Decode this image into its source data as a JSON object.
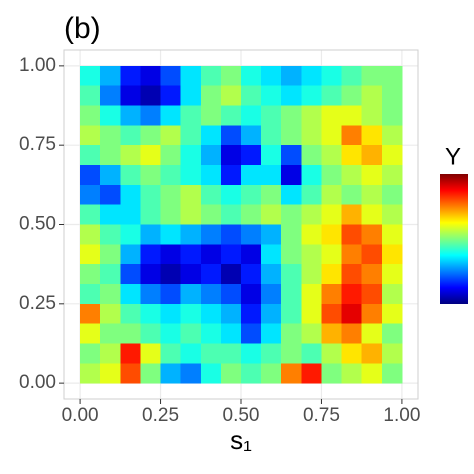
{
  "chart_data": {
    "type": "heatmap",
    "title": "(b)",
    "x_label": "s₁",
    "legend_title": "Y",
    "xlim": [
      -0.05,
      1.05
    ],
    "ylim": [
      -0.05,
      1.05
    ],
    "xticks": [
      {
        "value": 0,
        "label": "0.00"
      },
      {
        "value": 0.25,
        "label": "0.25"
      },
      {
        "value": 0.5,
        "label": "0.50"
      },
      {
        "value": 0.75,
        "label": "0.75"
      },
      {
        "value": 1,
        "label": "1.00"
      }
    ],
    "yticks": [
      {
        "value": 0,
        "label": "0.00"
      },
      {
        "value": 0.25,
        "label": "0.25"
      },
      {
        "value": 0.5,
        "label": "0.50"
      },
      {
        "value": 0.75,
        "label": "0.75"
      },
      {
        "value": 1,
        "label": "1.00"
      }
    ],
    "grid": true,
    "zlim": [
      0,
      1
    ],
    "colorscale": [
      "#00007F",
      "#0000FF",
      "#007FFF",
      "#00FFFF",
      "#7FFF7F",
      "#FFFF00",
      "#FF7F00",
      "#FF0000",
      "#7F0000"
    ],
    "x": [
      0.03125,
      0.09375,
      0.15625,
      0.21875,
      0.28125,
      0.34375,
      0.40625,
      0.46875,
      0.53125,
      0.59375,
      0.65625,
      0.71875,
      0.78125,
      0.84375,
      0.90625,
      0.96875
    ],
    "y": [
      0.96875,
      0.90625,
      0.84375,
      0.78125,
      0.71875,
      0.65625,
      0.59375,
      0.53125,
      0.46875,
      0.40625,
      0.34375,
      0.28125,
      0.21875,
      0.15625,
      0.09375,
      0.03125
    ],
    "z": [
      [
        0.4,
        0.3,
        0.15,
        0.1,
        0.2,
        0.35,
        0.45,
        0.5,
        0.4,
        0.35,
        0.3,
        0.35,
        0.4,
        0.45,
        0.5,
        0.5
      ],
      [
        0.45,
        0.25,
        0.1,
        0.05,
        0.15,
        0.35,
        0.5,
        0.55,
        0.45,
        0.4,
        0.35,
        0.4,
        0.45,
        0.5,
        0.55,
        0.5
      ],
      [
        0.5,
        0.4,
        0.3,
        0.25,
        0.35,
        0.45,
        0.5,
        0.45,
        0.4,
        0.45,
        0.5,
        0.55,
        0.6,
        0.6,
        0.55,
        0.5
      ],
      [
        0.55,
        0.5,
        0.45,
        0.5,
        0.55,
        0.45,
        0.35,
        0.2,
        0.3,
        0.45,
        0.5,
        0.55,
        0.6,
        0.75,
        0.65,
        0.55
      ],
      [
        0.45,
        0.5,
        0.55,
        0.6,
        0.5,
        0.4,
        0.3,
        0.1,
        0.15,
        0.4,
        0.2,
        0.5,
        0.55,
        0.65,
        0.7,
        0.6
      ],
      [
        0.2,
        0.3,
        0.45,
        0.5,
        0.45,
        0.4,
        0.35,
        0.15,
        0.35,
        0.35,
        0.1,
        0.4,
        0.5,
        0.55,
        0.6,
        0.55
      ],
      [
        0.25,
        0.2,
        0.35,
        0.45,
        0.5,
        0.55,
        0.45,
        0.4,
        0.45,
        0.5,
        0.35,
        0.45,
        0.55,
        0.5,
        0.55,
        0.5
      ],
      [
        0.45,
        0.35,
        0.35,
        0.45,
        0.5,
        0.55,
        0.5,
        0.45,
        0.5,
        0.55,
        0.5,
        0.55,
        0.6,
        0.7,
        0.6,
        0.55
      ],
      [
        0.55,
        0.45,
        0.4,
        0.3,
        0.35,
        0.3,
        0.25,
        0.2,
        0.25,
        0.3,
        0.5,
        0.6,
        0.65,
        0.8,
        0.75,
        0.6
      ],
      [
        0.6,
        0.5,
        0.3,
        0.15,
        0.1,
        0.15,
        0.1,
        0.15,
        0.1,
        0.35,
        0.5,
        0.55,
        0.6,
        0.75,
        0.8,
        0.65
      ],
      [
        0.5,
        0.45,
        0.2,
        0.1,
        0.05,
        0.1,
        0.15,
        0.05,
        0.15,
        0.3,
        0.45,
        0.55,
        0.65,
        0.8,
        0.75,
        0.6
      ],
      [
        0.45,
        0.5,
        0.35,
        0.25,
        0.2,
        0.3,
        0.25,
        0.2,
        0.1,
        0.25,
        0.45,
        0.6,
        0.75,
        0.85,
        0.8,
        0.55
      ],
      [
        0.75,
        0.55,
        0.45,
        0.4,
        0.35,
        0.4,
        0.35,
        0.3,
        0.15,
        0.3,
        0.45,
        0.6,
        0.8,
        0.9,
        0.75,
        0.6
      ],
      [
        0.6,
        0.5,
        0.5,
        0.45,
        0.4,
        0.45,
        0.4,
        0.35,
        0.2,
        0.35,
        0.5,
        0.55,
        0.7,
        0.75,
        0.6,
        0.5
      ],
      [
        0.5,
        0.55,
        0.85,
        0.6,
        0.45,
        0.4,
        0.45,
        0.45,
        0.4,
        0.45,
        0.5,
        0.45,
        0.55,
        0.65,
        0.7,
        0.55
      ],
      [
        0.55,
        0.6,
        0.8,
        0.5,
        0.3,
        0.25,
        0.4,
        0.5,
        0.45,
        0.5,
        0.75,
        0.85,
        0.5,
        0.55,
        0.6,
        0.5
      ]
    ]
  }
}
